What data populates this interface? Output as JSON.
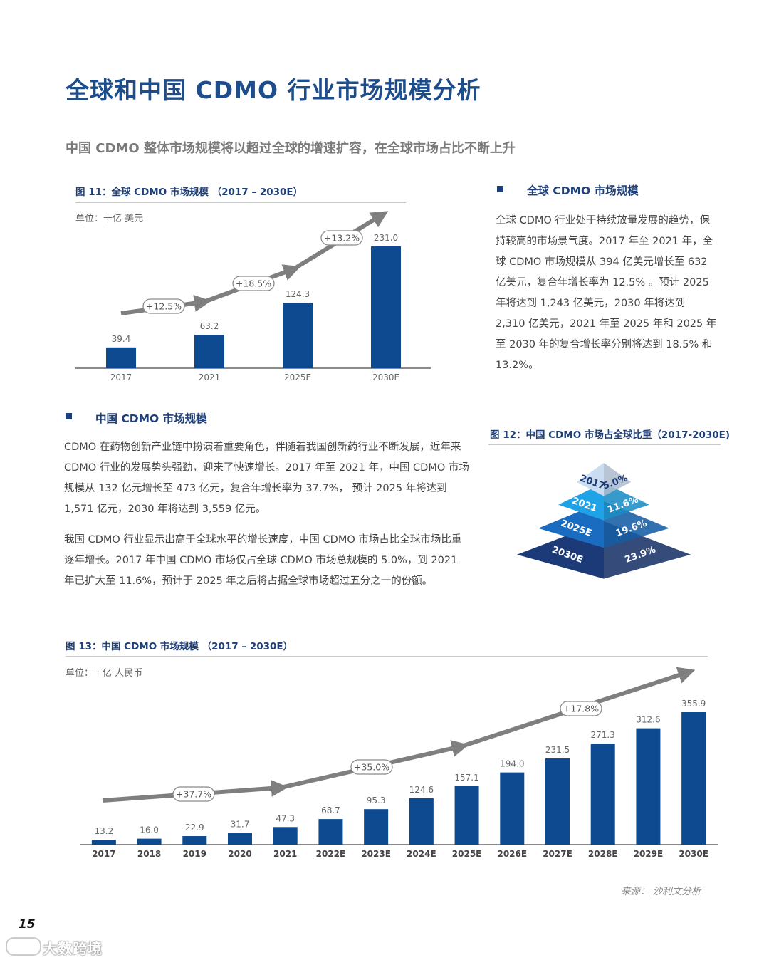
{
  "page": {
    "title": "全球和中国 CDMO 行业市场规模分析",
    "subtitle": "中国 CDMO 整体市场规模将以超过全球的增速扩容，在全球市场占比不断上升",
    "page_number": "15",
    "source": "来源： 沙利文分析",
    "watermark": "大数跨境"
  },
  "fig11": {
    "caption": "图 11：全球 CDMO 市场规模 （2017 – 2030E）",
    "unit": "单位：十亿 美元"
  },
  "fig12": {
    "caption": "图 12：中国 CDMO 市场占全球比重（2017-2030E)"
  },
  "fig13": {
    "caption": "图 13：中国 CDMO 市场规模 （2017 – 2030E）",
    "unit": "单位：十亿 人民币"
  },
  "global_section": {
    "heading": "全球 CDMO 市场规模",
    "paragraph": "全球 CDMO 行业处于持续放量发展的趋势，保持较高的市场景气度。2017 年至 2021 年，全球 CDMO 市场规模从 394 亿美元增长至 632 亿美元，复合年增长率为 12.5% 。预计 2025 年将达到 1,243 亿美元，2030 年将达到 2,310 亿美元，2021 年至 2025 年和 2025 年至 2030 年的复合增长率分别将达到 18.5% 和 13.2%。"
  },
  "china_section": {
    "heading": "中国 CDMO 市场规模",
    "paragraph1": "CDMO 在药物创新产业链中扮演着重要角色，伴随着我国创新药行业不断发展，近年来 CDMO 行业的发展势头强劲，迎来了快速增长。2017 年至 2021 年，中国 CDMO 市场规模从 132 亿元增长至 473 亿元，复合年增长率为 37.7%， 预计 2025 年将达到 1,571 亿元，2030 年将达到 3,559 亿元。",
    "paragraph2": "我国 CDMO 行业显示出高于全球水平的增长速度，中国 CDMO 市场占比全球市场比重逐年增长。2017 年中国 CDMO 市场仅占全球 CDMO 市场总规模的 5.0%，到 2021 年已扩大至 11.6%，预计于 2025 年之后将占据全球市场超过五分之一的份额。"
  },
  "colors": {
    "bar": "#0e4a8f",
    "arrow": "#7f7f7f",
    "title": "#1e4d8c",
    "pyramid": [
      "#c9dcf0",
      "#1fa3e6",
      "#1a6cc0",
      "#1d3a78"
    ]
  },
  "chart_data": [
    {
      "type": "bar",
      "id": "fig11",
      "categories": [
        "2017",
        "2021",
        "2025E",
        "2030E"
      ],
      "values": [
        39.4,
        63.2,
        124.3,
        231.0
      ],
      "value_labels": [
        "39.4",
        "63.2",
        "124.3",
        "231.0"
      ],
      "ylim": [
        0,
        231.0
      ],
      "growth_labels": [
        "+12.5%",
        "+18.5%",
        "+13.2%"
      ]
    },
    {
      "type": "pyramid",
      "id": "fig12",
      "categories": [
        "2017",
        "2021",
        "2025E",
        "2030E"
      ],
      "values": [
        5.0,
        11.6,
        19.6,
        23.9
      ],
      "value_labels": [
        "5.0%",
        "11.6%",
        "19.6%",
        "23.9%"
      ]
    },
    {
      "type": "bar",
      "id": "fig13",
      "categories": [
        "2017",
        "2018",
        "2019",
        "2020",
        "2021",
        "2022E",
        "2023E",
        "2024E",
        "2025E",
        "2026E",
        "2027E",
        "2028E",
        "2029E",
        "2030E"
      ],
      "values": [
        13.2,
        16.0,
        22.9,
        31.7,
        47.3,
        68.7,
        95.3,
        124.6,
        157.1,
        194.0,
        231.5,
        271.3,
        312.6,
        355.9
      ],
      "value_labels": [
        "13.2",
        "16.0",
        "22.9",
        "31.7",
        "47.3",
        "68.7",
        "95.3",
        "124.6",
        "157.1",
        "194.0",
        "231.5",
        "271.3",
        "312.6",
        "355.9"
      ],
      "ylim": [
        0,
        355.9
      ],
      "growth_labels": [
        "+37.7%",
        "+35.0%",
        "+17.8%"
      ]
    }
  ]
}
